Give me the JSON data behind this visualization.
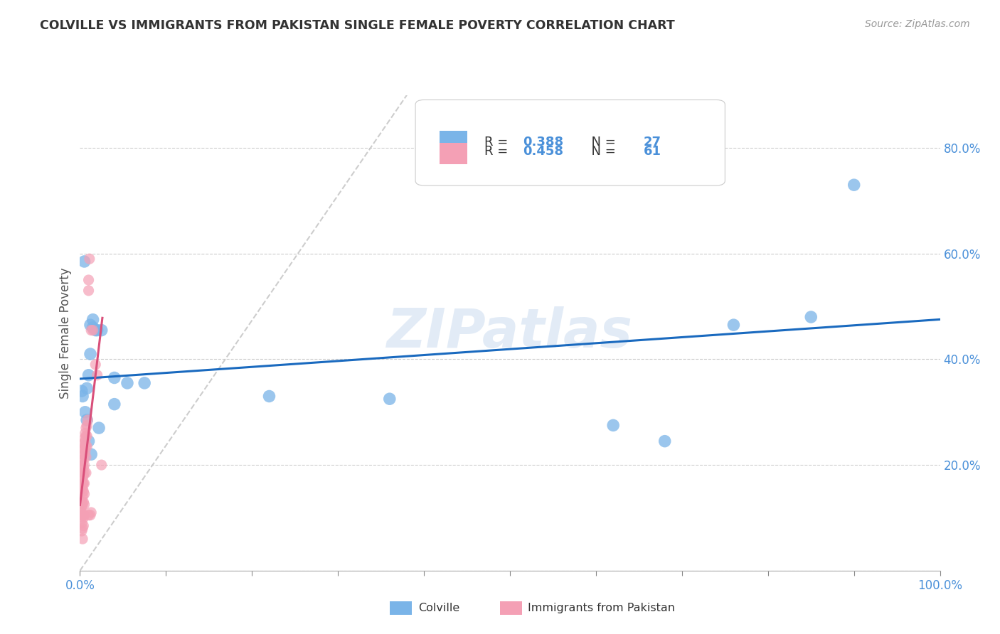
{
  "title": "COLVILLE VS IMMIGRANTS FROM PAKISTAN SINGLE FEMALE POVERTY CORRELATION CHART",
  "source": "Source: ZipAtlas.com",
  "ylabel": "Single Female Poverty",
  "x_min": 0.0,
  "x_max": 1.0,
  "y_min": 0.0,
  "y_max": 0.9,
  "colville_color": "#7ab4e8",
  "pakistan_color": "#f4a0b5",
  "trendline1_color": "#1a6abf",
  "trendline2_color": "#d94f7a",
  "diagonal_color": "#c8c8c8",
  "watermark": "ZIPatlas",
  "legend_label1": "Colville",
  "legend_label2": "Immigrants from Pakistan",
  "colville_points": [
    [
      0.005,
      0.585
    ],
    [
      0.012,
      0.465
    ],
    [
      0.015,
      0.475
    ],
    [
      0.018,
      0.455
    ],
    [
      0.002,
      0.34
    ],
    [
      0.008,
      0.345
    ],
    [
      0.01,
      0.37
    ],
    [
      0.012,
      0.41
    ],
    [
      0.015,
      0.46
    ],
    [
      0.02,
      0.455
    ],
    [
      0.025,
      0.455
    ],
    [
      0.003,
      0.33
    ],
    [
      0.006,
      0.3
    ],
    [
      0.008,
      0.285
    ],
    [
      0.01,
      0.245
    ],
    [
      0.013,
      0.22
    ],
    [
      0.022,
      0.27
    ],
    [
      0.04,
      0.315
    ],
    [
      0.04,
      0.365
    ],
    [
      0.055,
      0.355
    ],
    [
      0.075,
      0.355
    ],
    [
      0.22,
      0.33
    ],
    [
      0.36,
      0.325
    ],
    [
      0.62,
      0.275
    ],
    [
      0.68,
      0.245
    ],
    [
      0.76,
      0.465
    ],
    [
      0.85,
      0.48
    ],
    [
      0.9,
      0.73
    ]
  ],
  "pakistan_points": [
    [
      0.002,
      0.16
    ],
    [
      0.002,
      0.13
    ],
    [
      0.002,
      0.12
    ],
    [
      0.002,
      0.105
    ],
    [
      0.002,
      0.09
    ],
    [
      0.003,
      0.22
    ],
    [
      0.003,
      0.21
    ],
    [
      0.003,
      0.2
    ],
    [
      0.003,
      0.185
    ],
    [
      0.003,
      0.175
    ],
    [
      0.003,
      0.165
    ],
    [
      0.003,
      0.155
    ],
    [
      0.003,
      0.14
    ],
    [
      0.003,
      0.125
    ],
    [
      0.003,
      0.105
    ],
    [
      0.003,
      0.08
    ],
    [
      0.003,
      0.06
    ],
    [
      0.004,
      0.24
    ],
    [
      0.004,
      0.23
    ],
    [
      0.004,
      0.21
    ],
    [
      0.004,
      0.195
    ],
    [
      0.004,
      0.18
    ],
    [
      0.004,
      0.165
    ],
    [
      0.004,
      0.15
    ],
    [
      0.004,
      0.13
    ],
    [
      0.004,
      0.1
    ],
    [
      0.004,
      0.085
    ],
    [
      0.005,
      0.25
    ],
    [
      0.005,
      0.235
    ],
    [
      0.005,
      0.22
    ],
    [
      0.005,
      0.2
    ],
    [
      0.005,
      0.185
    ],
    [
      0.005,
      0.165
    ],
    [
      0.005,
      0.145
    ],
    [
      0.005,
      0.125
    ],
    [
      0.005,
      0.105
    ],
    [
      0.006,
      0.26
    ],
    [
      0.006,
      0.245
    ],
    [
      0.006,
      0.225
    ],
    [
      0.007,
      0.27
    ],
    [
      0.007,
      0.255
    ],
    [
      0.007,
      0.235
    ],
    [
      0.007,
      0.215
    ],
    [
      0.007,
      0.185
    ],
    [
      0.008,
      0.275
    ],
    [
      0.008,
      0.255
    ],
    [
      0.008,
      0.235
    ],
    [
      0.009,
      0.285
    ],
    [
      0.01,
      0.55
    ],
    [
      0.01,
      0.53
    ],
    [
      0.011,
      0.59
    ],
    [
      0.013,
      0.455
    ],
    [
      0.015,
      0.455
    ],
    [
      0.018,
      0.39
    ],
    [
      0.02,
      0.37
    ],
    [
      0.025,
      0.2
    ],
    [
      0.01,
      0.105
    ],
    [
      0.012,
      0.105
    ],
    [
      0.013,
      0.11
    ],
    [
      0.002,
      0.075
    ],
    [
      0.002,
      0.11
    ]
  ]
}
